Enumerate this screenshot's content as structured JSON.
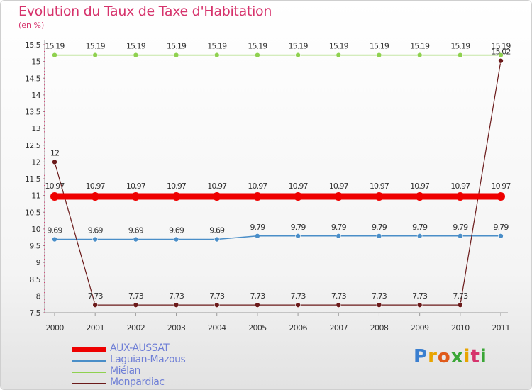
{
  "logo_text": "Proxiti",
  "chart_data": {
    "type": "line",
    "title": "Evolution du Taux de Taxe d'Habitation",
    "subtitle": "(en %)",
    "xlabel": "",
    "ylabel": "",
    "ylim": [
      7.5,
      15.5
    ],
    "yticks": [
      7.5,
      8,
      8.5,
      9,
      9.5,
      10,
      10.5,
      11,
      11.5,
      12,
      12.5,
      13,
      13.5,
      14,
      14.5,
      15,
      15.5
    ],
    "categories": [
      "2000",
      "2001",
      "2002",
      "2003",
      "2004",
      "2005",
      "2006",
      "2007",
      "2008",
      "2009",
      "2010",
      "2011"
    ],
    "grid": false,
    "legend": "bottom-left",
    "series": [
      {
        "name": "AUX-AUSSAT",
        "color": "#ee0000",
        "values": [
          10.97,
          10.97,
          10.97,
          10.97,
          10.97,
          10.97,
          10.97,
          10.97,
          10.97,
          10.97,
          10.97,
          10.97
        ],
        "labels": [
          "10.97",
          "10.97",
          "10.97",
          "10.97",
          "10.97",
          "10.97",
          "10.97",
          "10.97",
          "10.97",
          "10.97",
          "10.97",
          "10.97"
        ]
      },
      {
        "name": "Laguian-Mazous",
        "color": "#4a8ec8",
        "values": [
          9.69,
          9.69,
          9.69,
          9.69,
          9.69,
          9.79,
          9.79,
          9.79,
          9.79,
          9.79,
          9.79,
          9.79
        ],
        "labels": [
          "9.69",
          "9.69",
          "9.69",
          "9.69",
          "9.69",
          "9.79",
          "9.79",
          "9.79",
          "9.79",
          "9.79",
          "9.79",
          "9.79"
        ]
      },
      {
        "name": "Miélan",
        "color": "#8fd14f",
        "values": [
          15.19,
          15.19,
          15.19,
          15.19,
          15.19,
          15.19,
          15.19,
          15.19,
          15.19,
          15.19,
          15.19,
          15.19
        ],
        "labels": [
          "15.19",
          "15.19",
          "15.19",
          "15.19",
          "15.19",
          "15.19",
          "15.19",
          "15.19",
          "15.19",
          "15.19",
          "15.19",
          "15.19"
        ]
      },
      {
        "name": "Monpardiac",
        "color": "#6b1a1a",
        "values": [
          12,
          7.73,
          7.73,
          7.73,
          7.73,
          7.73,
          7.73,
          7.73,
          7.73,
          7.73,
          7.73,
          15.02
        ],
        "labels": [
          "12",
          "7.73",
          "7.73",
          "7.73",
          "7.73",
          "7.73",
          "7.73",
          "7.73",
          "7.73",
          "7.73",
          "7.73",
          "15.02"
        ]
      }
    ]
  }
}
